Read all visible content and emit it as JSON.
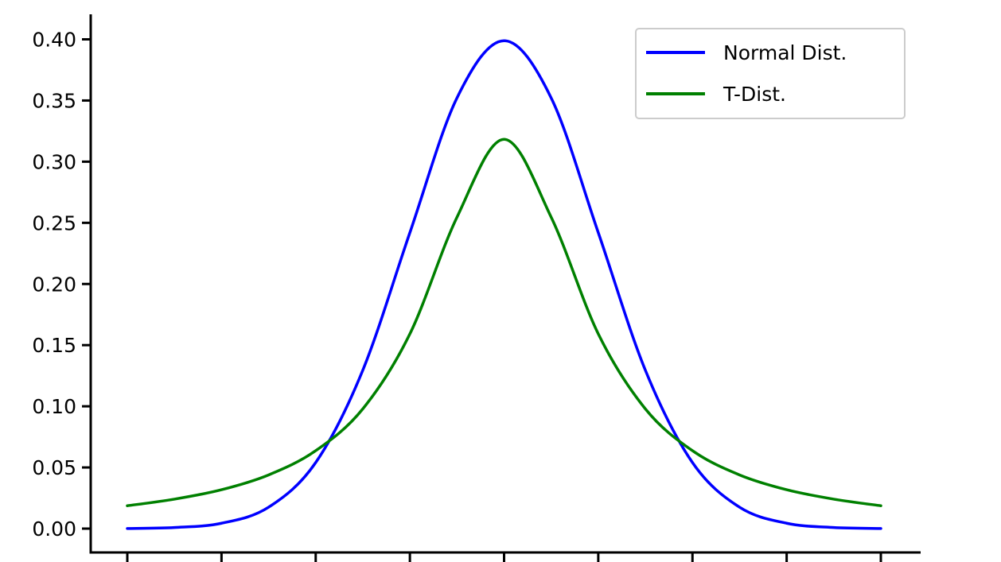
{
  "chart_data": {
    "type": "line",
    "title": "",
    "xlabel": "",
    "ylabel": "",
    "xlim": [
      -4,
      4
    ],
    "ylim": [
      0,
      0.4
    ],
    "x_ticks": [
      -4,
      -3,
      -2,
      -1,
      0,
      1,
      2,
      3,
      4
    ],
    "x_tick_labels_visible": false,
    "y_ticks": [
      "0.00",
      "0.05",
      "0.10",
      "0.15",
      "0.20",
      "0.25",
      "0.30",
      "0.35",
      "0.40"
    ],
    "grid": false,
    "legend_position": "top-right",
    "series": [
      {
        "name": "Normal Dist.",
        "color": "#0000ff",
        "x": [
          -4.0,
          -3.5,
          -3.0,
          -2.5,
          -2.0,
          -1.5,
          -1.0,
          -0.5,
          0.0,
          0.5,
          1.0,
          1.5,
          2.0,
          2.5,
          3.0,
          3.5,
          4.0
        ],
        "y": [
          0.0001,
          0.0009,
          0.0044,
          0.0175,
          0.054,
          0.1295,
          0.242,
          0.3521,
          0.3989,
          0.3521,
          0.242,
          0.1295,
          0.054,
          0.0175,
          0.0044,
          0.0009,
          0.0001
        ]
      },
      {
        "name": "T-Dist.",
        "color": "#008000",
        "x": [
          -4.0,
          -3.5,
          -3.0,
          -2.5,
          -2.0,
          -1.5,
          -1.0,
          -0.5,
          0.0,
          0.5,
          1.0,
          1.5,
          2.0,
          2.5,
          3.0,
          3.5,
          4.0
        ],
        "y": [
          0.0187,
          0.0241,
          0.0318,
          0.0439,
          0.0637,
          0.0979,
          0.1592,
          0.2546,
          0.3183,
          0.2546,
          0.1592,
          0.0979,
          0.0637,
          0.0439,
          0.0318,
          0.0241,
          0.0187
        ]
      }
    ]
  }
}
